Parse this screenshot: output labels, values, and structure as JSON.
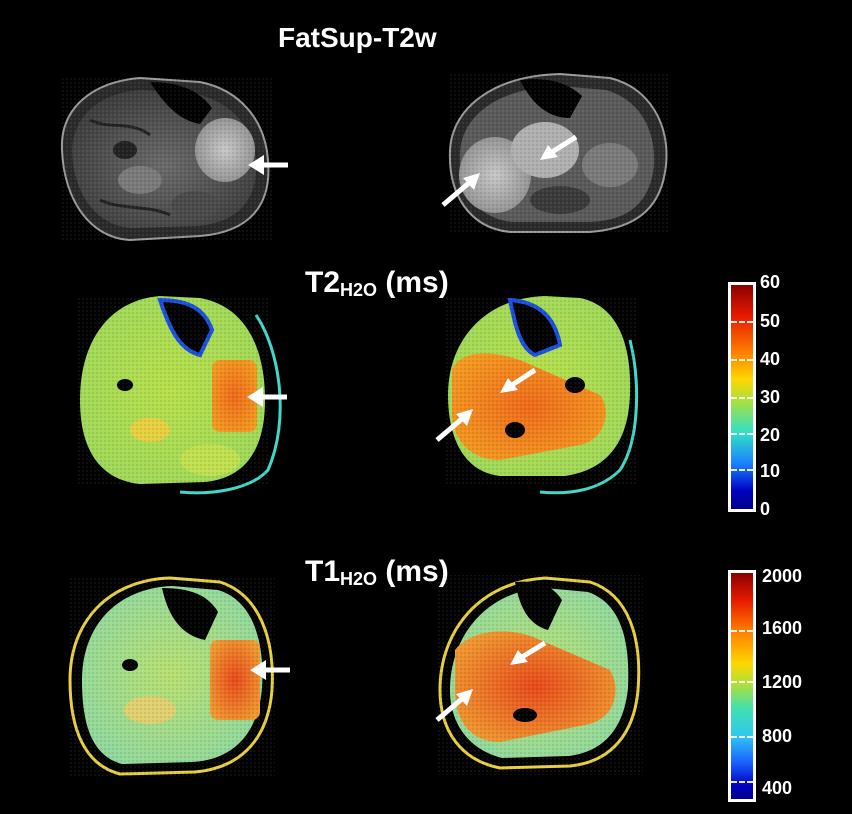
{
  "titles": {
    "fatsup": "FatSup-T2w",
    "t2_main": "T2",
    "t2_sub": "H2O",
    "t2_unit": " (ms)",
    "t1_main": "T1",
    "t1_sub": "H2O",
    "t1_unit": " (ms)"
  },
  "colorbar_t2": {
    "labels": [
      "60",
      "50",
      "40",
      "30",
      "20",
      "10",
      "0"
    ]
  },
  "colorbar_t1": {
    "labels": [
      "2000",
      "1600",
      "1200",
      "800",
      "400"
    ]
  },
  "colors": {
    "background": "#000000",
    "jet_low": "#00008f",
    "jet_high": "#800000",
    "arrow": "#ffffff"
  }
}
